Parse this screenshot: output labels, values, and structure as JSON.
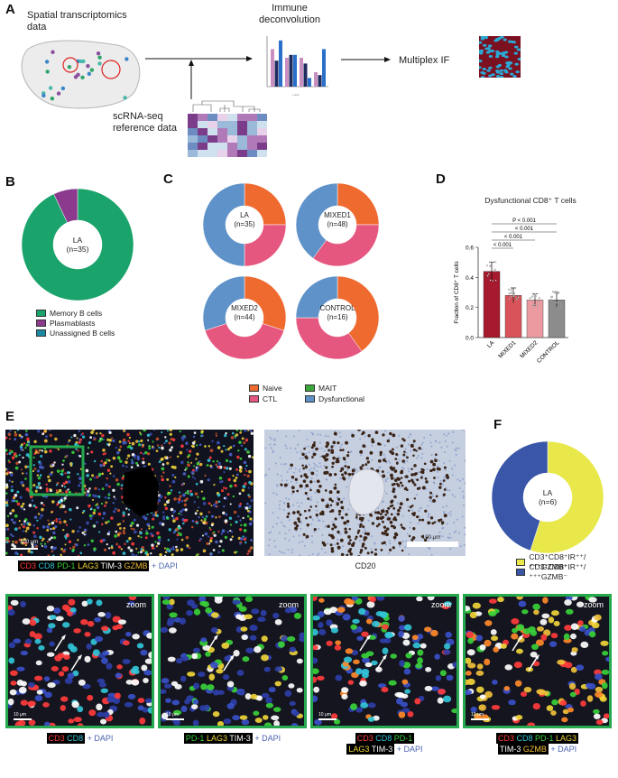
{
  "panels": {
    "A": "A",
    "B": "B",
    "C": "C",
    "D": "D",
    "E": "E",
    "F": "F"
  },
  "panelA": {
    "spatial_title": "Spatial transcriptomics\ndata",
    "immune_title": "Immune\ndeconvolution",
    "multiplex_label": "Multiplex IF",
    "scrna_label": "scRNA-seq\nreference data",
    "mini_chart": {
      "values": [
        [
          13,
          10,
          10,
          5
        ],
        [
          9,
          11,
          8,
          4
        ],
        [
          16,
          11,
          3,
          13
        ]
      ],
      "colors": [
        "#c98fc0",
        "#1f2a5e",
        "#2a6fc9"
      ]
    }
  },
  "panelB": {
    "center": "LA\n(n=35)",
    "legend": [
      {
        "label": "Memory B cells",
        "color": "#1aa36a"
      },
      {
        "label": "Plasmablasts",
        "color": "#8c3a8e"
      },
      {
        "label": "Unassigned B cells",
        "color": "#1b8aa0"
      }
    ],
    "slices": [
      0.93,
      0.07,
      0.0
    ]
  },
  "panelC": {
    "donuts": [
      {
        "center": "LA\n(n=35)",
        "slices": [
          0.25,
          0.25,
          0.0,
          0.5
        ]
      },
      {
        "center": "MIXED1\n(n=48)",
        "slices": [
          0.25,
          0.35,
          0.0,
          0.4
        ]
      },
      {
        "center": "MIXED2\n(n=44)",
        "slices": [
          0.3,
          0.4,
          0.0,
          0.3
        ]
      },
      {
        "center": "CONTROL\n(n=16)",
        "slices": [
          0.4,
          0.35,
          0.0,
          0.25
        ]
      }
    ],
    "legend": [
      {
        "label": "Naive",
        "color": "#ee6a2f"
      },
      {
        "label": "MAIT",
        "color": "#3aa83a"
      },
      {
        "label": "CTL",
        "color": "#e6577f"
      },
      {
        "label": "Dysfunctional",
        "color": "#5f92c8"
      }
    ]
  },
  "chart_data": {
    "type": "bar",
    "title": "Dysfunctional CD8⁺ T cells",
    "ylabel": "Fraction of CD8⁺ T cells",
    "categories": [
      "LA",
      "MIXED1",
      "MIXED2",
      "CONTROL"
    ],
    "values": [
      0.44,
      0.28,
      0.25,
      0.25
    ],
    "errors": [
      0.06,
      0.05,
      0.04,
      0.05
    ],
    "colors": [
      "#a6192e",
      "#d9535a",
      "#eb9ba0",
      "#8c8c8c"
    ],
    "ylim": [
      0,
      0.6
    ],
    "yticks": [
      "0.0",
      "0.2",
      "0.4",
      "0.6"
    ],
    "brackets": [
      {
        "label": "P < 0.001",
        "from": 0,
        "to": 3
      },
      {
        "label": "< 0.001",
        "from": 0,
        "to": 3
      },
      {
        "label": "< 0.001",
        "from": 0,
        "to": 2
      },
      {
        "label": "< 0.001",
        "from": 0,
        "to": 1
      }
    ]
  },
  "panelE": {
    "scale_if": "100 μm",
    "scale_ihc": "100 μm",
    "cd20_label": "CD20",
    "markers": [
      {
        "text": "CD3",
        "color": "#ff3c3c"
      },
      {
        "text": "CD8",
        "color": "#33c4d8"
      },
      {
        "text": "PD-1",
        "color": "#3ad13a"
      },
      {
        "text": "LAG3",
        "color": "#f0d53a"
      },
      {
        "text": "TIM-3",
        "color": "#ffffff"
      },
      {
        "text": "GZMB",
        "color": "#f0c03a"
      }
    ],
    "plus_dapi": "+ DAPI",
    "zooms": [
      {
        "zoom": "zoom",
        "scale": "10 μm"
      },
      {
        "zoom": "zoom",
        "scale": "10 μm"
      },
      {
        "zoom": "zoom",
        "scale": "10 μm"
      },
      {
        "zoom": "zoom",
        "scale": "10 μm"
      }
    ]
  },
  "panelF": {
    "center": "LA\n(n=6)",
    "slices": [
      0.55,
      0.45
    ],
    "legend": [
      {
        "label": "CD3⁺CD8⁺IR⁺⁺/⁺⁺⁺GZMB⁺",
        "color": "#e8e84a"
      },
      {
        "label": "CD3⁺CD8⁺IR⁺⁺/⁺⁺⁺GZMB⁻",
        "color": "#3a56a8"
      }
    ]
  }
}
